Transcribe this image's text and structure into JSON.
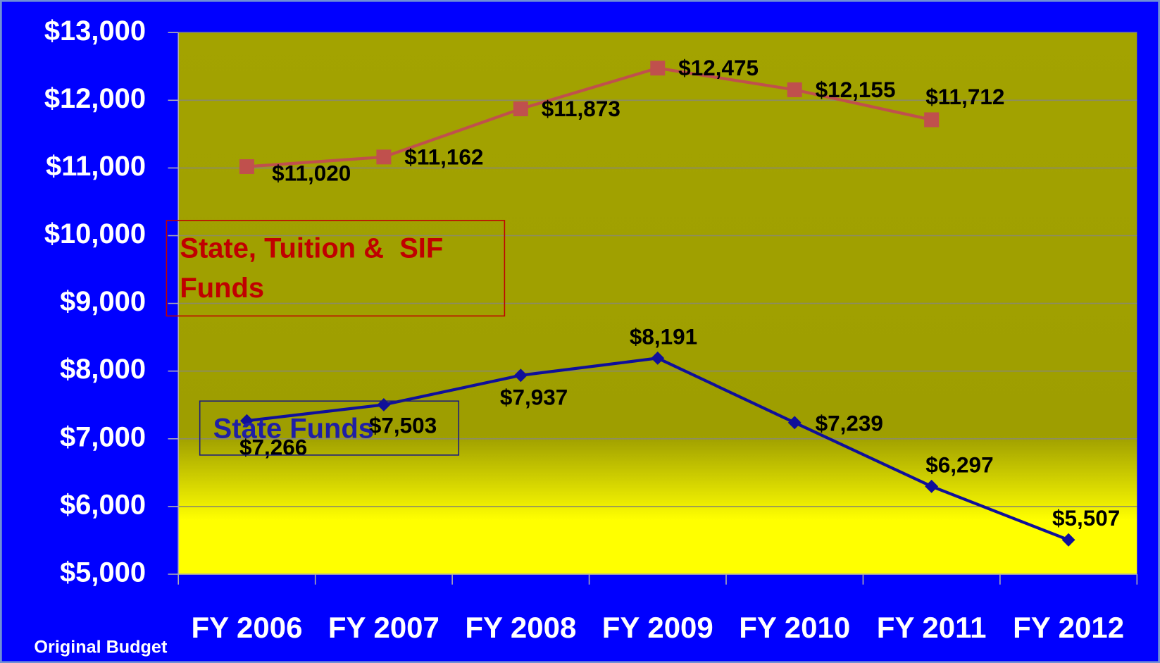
{
  "chart_data": {
    "type": "line",
    "annotation": "Original Budget",
    "categories": [
      "FY 2006",
      "FY 2007",
      "FY 2008",
      "FY 2009",
      "FY 2010",
      "FY 2011",
      "FY 2012"
    ],
    "series": [
      {
        "name": "State, Tuition &  SIF Funds",
        "color": "#c0504d",
        "marker": "square",
        "values": [
          11020,
          11162,
          11873,
          12475,
          12155,
          11712,
          null
        ],
        "value_labels": [
          "$11,020",
          "$11,162",
          "$11,873",
          "$12,475",
          "$12,155",
          "$11,712",
          null
        ]
      },
      {
        "name": "State Funds",
        "color": "#0f0f9a",
        "marker": "diamond",
        "values": [
          7266,
          7503,
          7937,
          8191,
          7239,
          6297,
          5507
        ],
        "value_labels": [
          "$7,266",
          "$7,503",
          "$7,937",
          "$8,191",
          "$7,239",
          "$6,297",
          "$5,507"
        ]
      }
    ],
    "ylim": [
      5000,
      13000
    ],
    "yticks": [
      {
        "value": 5000,
        "label": "$5,000"
      },
      {
        "value": 6000,
        "label": "$6,000"
      },
      {
        "value": 7000,
        "label": "$7,000"
      },
      {
        "value": 8000,
        "label": "$8,000"
      },
      {
        "value": 9000,
        "label": "$9,000"
      },
      {
        "value": 10000,
        "label": "$10,000"
      },
      {
        "value": 11000,
        "label": "$11,000"
      },
      {
        "value": 12000,
        "label": "$12,000"
      },
      {
        "value": 13000,
        "label": "$13,000"
      }
    ],
    "grid": true
  }
}
